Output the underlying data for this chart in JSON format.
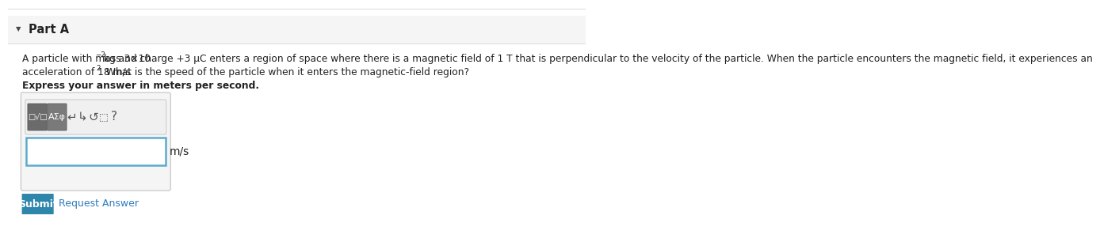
{
  "bg_color": "#f5f5f5",
  "white_bg": "#ffffff",
  "part_label": "Part A",
  "triangle": "▼",
  "line1_pre": "A particle with mass 3×10",
  "line1_exp": "−2",
  "line1_post": " kg and charge +3 μC enters a region of space where there is a magnetic field of 1 T that is perpendicular to the velocity of the particle. When the particle encounters the magnetic field, it experiences an",
  "line2_pre": "acceleration of 18 m/s",
  "line2_exp": "2",
  "line2_post": ". What is the speed of the particle when it enters the magnetic-field region?",
  "bold_text": "Express your answer in meters per second.",
  "unit_label": "m/s",
  "submit_text": "Submit",
  "submit_bg": "#2e86ab",
  "submit_color": "#ffffff",
  "request_text": "Request Answer",
  "request_color": "#2e7bbf",
  "top_line_color": "#dddddd",
  "header_bg": "#f5f5f5",
  "header_border": "#e0e0e0",
  "section_bg": "#ffffff",
  "part_color": "#222222",
  "text_color": "#222222",
  "toolbar_bg": "#f0f0f0",
  "toolbar_border": "#cccccc",
  "btn1_bg": "#6b6b6b",
  "btn2_bg": "#7a7a7a",
  "input_border_color": "#5aaccc",
  "outer_box_bg": "#f5f5f5",
  "outer_box_border": "#cccccc"
}
